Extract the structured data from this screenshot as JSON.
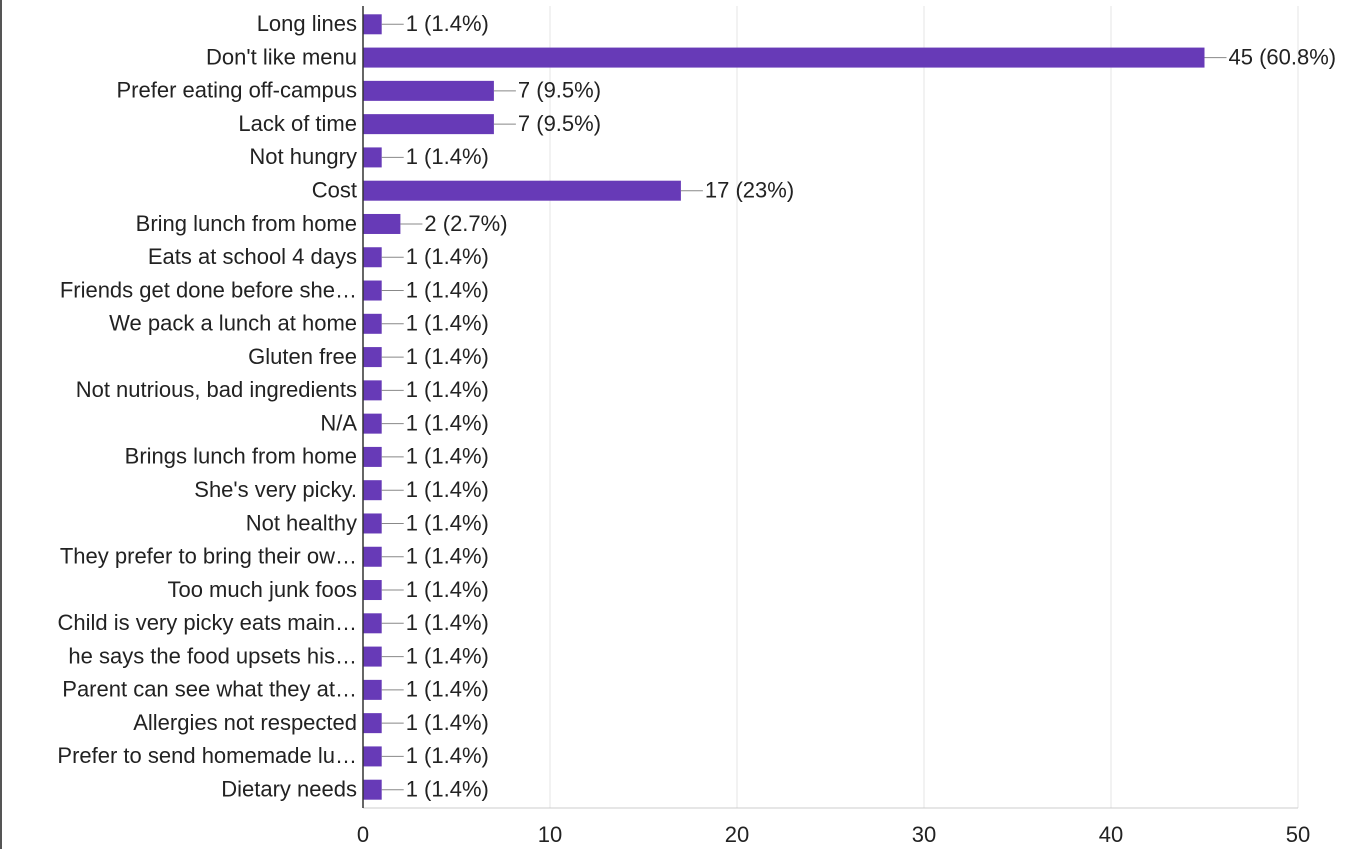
{
  "chart_data": {
    "type": "hbar",
    "categories": [
      "Long lines",
      "Don't like menu",
      "Prefer eating off-campus",
      "Lack of time",
      "Not hungry",
      "Cost",
      "Bring lunch from home",
      "Eats at school 4 days",
      "Friends get done before she…",
      "We pack a lunch at home",
      "Gluten free",
      "Not nutrious, bad ingredients",
      "N/A",
      "Brings lunch from home",
      "She's very picky.",
      "Not healthy",
      "They prefer to bring their ow…",
      "Too much junk foos",
      "Child is very picky eats main…",
      "he says the food upsets his…",
      "Parent can see what they at…",
      "Allergies not respected",
      "Prefer to send homemade lu…",
      "Dietary needs"
    ],
    "values": [
      1,
      45,
      7,
      7,
      1,
      17,
      2,
      1,
      1,
      1,
      1,
      1,
      1,
      1,
      1,
      1,
      1,
      1,
      1,
      1,
      1,
      1,
      1,
      1
    ],
    "value_labels": [
      "1 (1.4%)",
      "45 (60.8%)",
      "7 (9.5%)",
      "7 (9.5%)",
      "1 (1.4%)",
      "17 (23%)",
      "2 (2.7%)",
      "1 (1.4%)",
      "1 (1.4%)",
      "1 (1.4%)",
      "1 (1.4%)",
      "1 (1.4%)",
      "1 (1.4%)",
      "1 (1.4%)",
      "1 (1.4%)",
      "1 (1.4%)",
      "1 (1.4%)",
      "1 (1.4%)",
      "1 (1.4%)",
      "1 (1.4%)",
      "1 (1.4%)",
      "1 (1.4%)",
      "1 (1.4%)",
      "1 (1.4%)"
    ],
    "color": "#673ab7",
    "xlim": [
      0,
      50
    ],
    "xticks": [
      0,
      10,
      20,
      30,
      40,
      50
    ],
    "grid": true
  }
}
